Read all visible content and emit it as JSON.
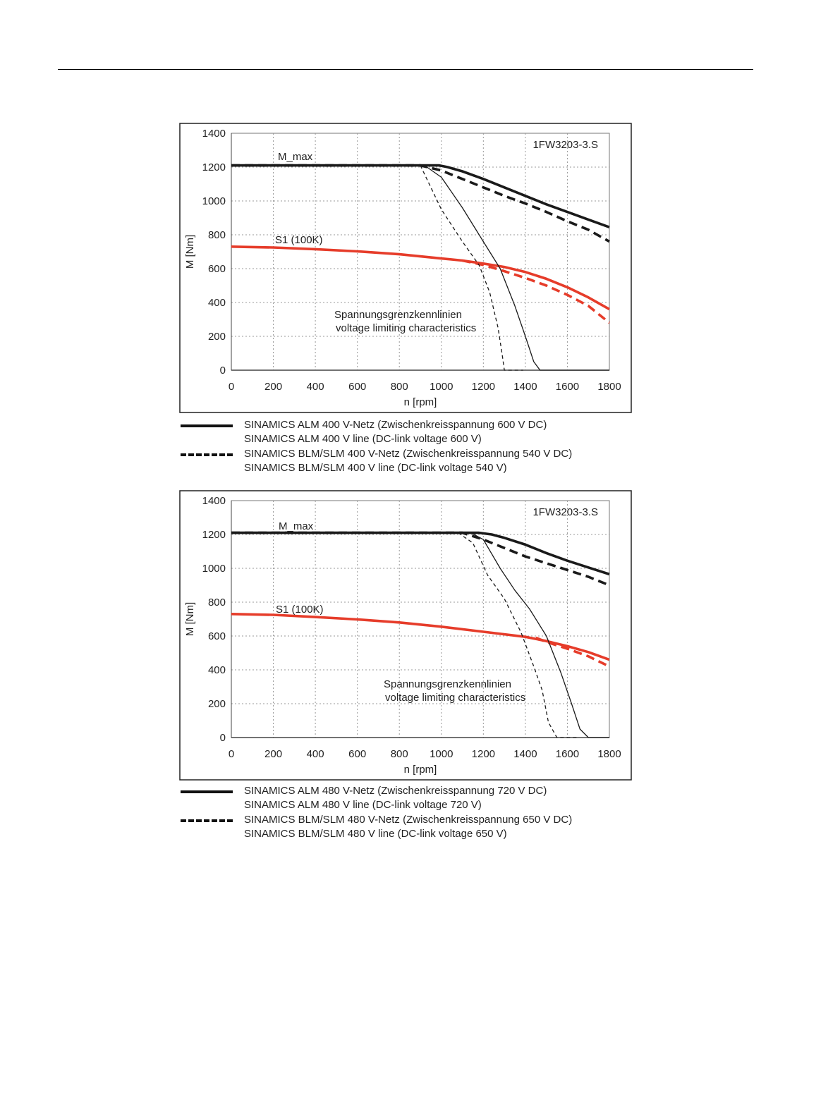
{
  "chart_data": [
    {
      "type": "line",
      "title": "1FW3203-3.S",
      "xlabel": "n [rpm]",
      "ylabel": "M [Nm]",
      "xlim": [
        0,
        1800
      ],
      "ylim": [
        0,
        1400
      ],
      "xticks": [
        0,
        200,
        400,
        600,
        800,
        1000,
        1200,
        1400,
        1600,
        1800
      ],
      "yticks": [
        0,
        200,
        400,
        600,
        800,
        1000,
        1200,
        1400
      ],
      "grid": true,
      "annotations": [
        "M_max",
        "S1 (100K)",
        "Spannungsgrenzkennlinien",
        "voltage limiting characteristics"
      ],
      "series": [
        {
          "color": "#1a1a1a",
          "style": "solid",
          "width": "thick",
          "x": [
            0,
            990,
            1030,
            1100,
            1200,
            1300,
            1400,
            1500,
            1600,
            1700,
            1800
          ],
          "y": [
            1210,
            1210,
            1200,
            1175,
            1130,
            1080,
            1030,
            980,
            935,
            890,
            845
          ]
        },
        {
          "color": "#1a1a1a",
          "style": "dashed",
          "width": "thick",
          "x": [
            0,
            900,
            1000,
            1100,
            1200,
            1300,
            1400,
            1500,
            1600,
            1700,
            1800
          ],
          "y": [
            1210,
            1210,
            1180,
            1130,
            1080,
            1030,
            985,
            935,
            880,
            830,
            760
          ]
        },
        {
          "color": "#e63c2a",
          "style": "solid",
          "width": "thick",
          "x": [
            0,
            200,
            400,
            600,
            800,
            1000,
            1100,
            1200,
            1300,
            1400,
            1500,
            1600,
            1700,
            1800
          ],
          "y": [
            730,
            725,
            715,
            702,
            685,
            660,
            648,
            630,
            610,
            580,
            540,
            490,
            430,
            360
          ]
        },
        {
          "color": "#e63c2a",
          "style": "dashed",
          "width": "thick",
          "x": [
            1100,
            1200,
            1300,
            1400,
            1500,
            1600,
            1700,
            1800
          ],
          "y": [
            648,
            622,
            585,
            545,
            500,
            445,
            380,
            280
          ]
        },
        {
          "color": "#1a1a1a",
          "style": "solid",
          "width": "thin",
          "x": [
            920,
            1000,
            1100,
            1200,
            1280,
            1350,
            1400,
            1440,
            1470,
            1800
          ],
          "y": [
            1210,
            1140,
            960,
            760,
            600,
            380,
            200,
            50,
            0,
            0
          ]
        },
        {
          "color": "#1a1a1a",
          "style": "dashed",
          "width": "thin",
          "x": [
            900,
            1000,
            1100,
            1180,
            1230,
            1270,
            1290,
            1300,
            1390
          ],
          "y": [
            1210,
            950,
            760,
            620,
            460,
            250,
            90,
            0,
            0
          ]
        }
      ]
    },
    {
      "type": "line",
      "title": "1FW3203-3.S",
      "xlabel": "n [rpm]",
      "ylabel": "M [Nm]",
      "xlim": [
        0,
        1800
      ],
      "ylim": [
        0,
        1400
      ],
      "xticks": [
        0,
        200,
        400,
        600,
        800,
        1000,
        1200,
        1400,
        1600,
        1800
      ],
      "yticks": [
        0,
        200,
        400,
        600,
        800,
        1000,
        1200,
        1400
      ],
      "grid": true,
      "annotations": [
        "M_max",
        "S1 (100K)",
        "Spannungsgrenzkennlinien",
        "voltage limiting characteristics"
      ],
      "series": [
        {
          "color": "#1a1a1a",
          "style": "solid",
          "width": "thick",
          "x": [
            0,
            1180,
            1240,
            1300,
            1400,
            1500,
            1600,
            1700,
            1800
          ],
          "y": [
            1210,
            1210,
            1200,
            1180,
            1140,
            1090,
            1045,
            1005,
            965
          ]
        },
        {
          "color": "#1a1a1a",
          "style": "dashed",
          "width": "thick",
          "x": [
            0,
            1100,
            1200,
            1300,
            1400,
            1500,
            1600,
            1700,
            1800
          ],
          "y": [
            1210,
            1210,
            1170,
            1120,
            1070,
            1030,
            990,
            950,
            900
          ]
        },
        {
          "color": "#e63c2a",
          "style": "solid",
          "width": "thick",
          "x": [
            0,
            200,
            400,
            600,
            800,
            1000,
            1200,
            1400,
            1500,
            1600,
            1700,
            1800
          ],
          "y": [
            730,
            725,
            712,
            698,
            680,
            655,
            625,
            595,
            570,
            540,
            505,
            460
          ]
        },
        {
          "color": "#e63c2a",
          "style": "dashed",
          "width": "thick",
          "x": [
            1450,
            1500,
            1600,
            1700,
            1800
          ],
          "y": [
            590,
            565,
            525,
            480,
            420
          ]
        },
        {
          "color": "#1a1a1a",
          "style": "solid",
          "width": "thin",
          "x": [
            1140,
            1200,
            1280,
            1350,
            1420,
            1500,
            1570,
            1620,
            1660,
            1700,
            1800
          ],
          "y": [
            1210,
            1170,
            1000,
            870,
            760,
            600,
            380,
            200,
            50,
            0,
            0
          ]
        },
        {
          "color": "#1a1a1a",
          "style": "dashed",
          "width": "thin",
          "x": [
            1080,
            1150,
            1220,
            1300,
            1380,
            1440,
            1480,
            1510,
            1550,
            1650
          ],
          "y": [
            1210,
            1150,
            960,
            820,
            620,
            420,
            280,
            90,
            0,
            0
          ]
        }
      ]
    }
  ],
  "legends": [
    {
      "items": [
        {
          "style": "solid",
          "line1": "SINAMICS ALM  400 V-Netz (Zwischenkreisspannung 600 V DC)",
          "line2": "SINAMICS ALM  400 V line (DC-link voltage 600 V)"
        },
        {
          "style": "dashed",
          "line1": "SINAMICS BLM/SLM  400 V-Netz (Zwischenkreisspannung 540 V DC)",
          "line2": "SINAMICS BLM/SLM  400 V line (DC-link voltage 540 V)"
        }
      ]
    },
    {
      "items": [
        {
          "style": "solid",
          "line1": "SINAMICS ALM  480 V-Netz (Zwischenkreisspannung 720 V DC)",
          "line2": "SINAMICS ALM  480 V line (DC-link voltage 720 V)"
        },
        {
          "style": "dashed",
          "line1": "SINAMICS BLM/SLM  480 V-Netz (Zwischenkreisspannung 650 V DC)",
          "line2": "SINAMICS BLM/SLM  480 V line (DC-link voltage 650 V)"
        }
      ]
    }
  ]
}
